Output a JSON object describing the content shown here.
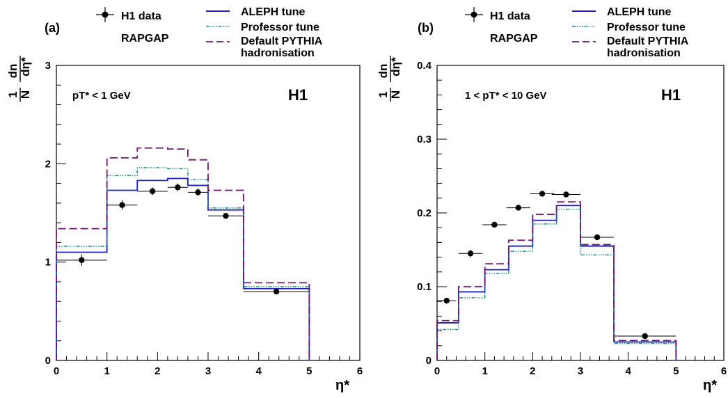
{
  "legend": {
    "data_label": "H1 data",
    "generator_label": "RAPGAP",
    "aleph_label": "ALEPH tune",
    "professor_label": "Professor tune",
    "default_line1": "Default PYTHIA",
    "default_line2": "hadronisation"
  },
  "colors": {
    "data": "#000000",
    "aleph": "#1f1fc8",
    "professor": "#1f8a8a",
    "default": "#6a1a6a"
  },
  "ylabel": {
    "num_1": "1",
    "den_N": "N",
    "num_dn": "dn",
    "den_deta": "dη*"
  },
  "chart_data": [
    {
      "type": "line",
      "panel_label": "(a)",
      "experiment_label": "H1",
      "cut_label": "pT* < 1 GeV",
      "xlabel": "η*",
      "xlim": [
        0,
        6
      ],
      "ylim": [
        0,
        3
      ],
      "xticks": [
        0,
        1,
        2,
        3,
        4,
        5,
        6
      ],
      "yticks": [
        0,
        1,
        2,
        3
      ],
      "bin_edges": [
        0,
        1,
        1.6,
        2.2,
        2.6,
        3.0,
        3.7,
        5.0
      ],
      "data": {
        "name": "H1 data",
        "x": [
          0.5,
          1.3,
          1.9,
          2.4,
          2.8,
          3.35,
          4.35
        ],
        "xerr": [
          0.5,
          0.3,
          0.3,
          0.2,
          0.2,
          0.35,
          0.65
        ],
        "y": [
          1.02,
          1.58,
          1.72,
          1.76,
          1.71,
          1.47,
          0.7
        ],
        "yerr": [
          0.06,
          0.05,
          0.04,
          0.04,
          0.04,
          0.03,
          0.03
        ]
      },
      "series": [
        {
          "name": "ALEPH tune",
          "values": [
            1.1,
            1.73,
            1.83,
            1.85,
            1.78,
            1.53,
            0.73
          ]
        },
        {
          "name": "Professor tune",
          "values": [
            1.16,
            1.88,
            1.96,
            1.95,
            1.84,
            1.55,
            0.75
          ]
        },
        {
          "name": "Default PYTHIA hadronisation",
          "values": [
            1.34,
            2.06,
            2.16,
            2.15,
            2.04,
            1.73,
            0.79
          ]
        }
      ]
    },
    {
      "type": "line",
      "panel_label": "(b)",
      "experiment_label": "H1",
      "cut_label": "1 < pT* < 10 GeV",
      "xlabel": "η*",
      "xlim": [
        0,
        6
      ],
      "ylim": [
        0,
        0.4
      ],
      "xticks": [
        0,
        1,
        2,
        3,
        4,
        5,
        6
      ],
      "yticks": [
        0,
        0.1,
        0.2,
        0.3,
        0.4
      ],
      "ytick_labels": [
        "0",
        "0.1",
        "0.2",
        "0.3",
        "0.4"
      ],
      "bin_edges": [
        0,
        0.45,
        1.0,
        1.5,
        2.0,
        2.5,
        3.0,
        3.7,
        5.0
      ],
      "data": {
        "name": "H1 data",
        "x": [
          0.2,
          0.7,
          1.2,
          1.7,
          2.2,
          2.7,
          3.35,
          4.35
        ],
        "xerr": [
          0.2,
          0.25,
          0.25,
          0.25,
          0.25,
          0.3,
          0.35,
          0.65
        ],
        "y": [
          0.081,
          0.145,
          0.184,
          0.207,
          0.226,
          0.225,
          0.167,
          0.033
        ],
        "yerr": [
          0.004,
          0.005,
          0.004,
          0.003,
          0.003,
          0.003,
          0.003,
          0.002
        ]
      },
      "series": [
        {
          "name": "ALEPH tune",
          "values": [
            0.051,
            0.093,
            0.123,
            0.155,
            0.19,
            0.21,
            0.155,
            0.025
          ]
        },
        {
          "name": "Professor tune",
          "values": [
            0.042,
            0.085,
            0.118,
            0.148,
            0.185,
            0.205,
            0.143,
            0.023
          ]
        },
        {
          "name": "Default PYTHIA hadronisation",
          "values": [
            0.054,
            0.1,
            0.131,
            0.163,
            0.198,
            0.215,
            0.157,
            0.027
          ]
        }
      ]
    }
  ]
}
